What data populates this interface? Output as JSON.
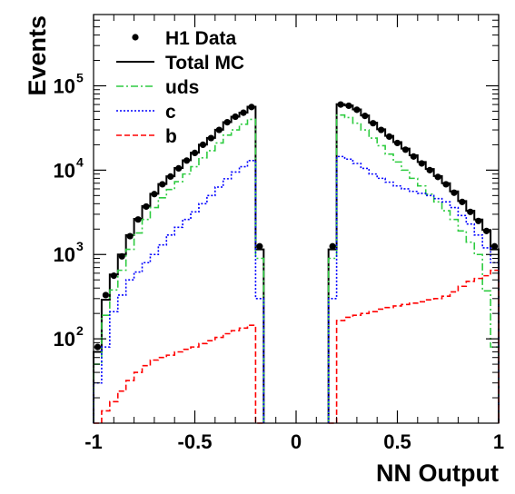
{
  "chart_data": {
    "type": "line",
    "title": "",
    "xlabel": "NN Output",
    "ylabel": "Events",
    "xlim": [
      -1,
      1
    ],
    "ylim": [
      10,
      700000
    ],
    "yscale": "log",
    "x_ticks": [
      -1,
      -0.5,
      0,
      0.5,
      1
    ],
    "x_tick_labels": [
      "-1",
      "-0.5",
      "0",
      "0.5",
      "1"
    ],
    "y_ticks": [
      100,
      1000,
      10000,
      100000
    ],
    "y_tick_labels": [
      {
        "base": "10",
        "exp": "2"
      },
      {
        "base": "10",
        "exp": "3"
      },
      {
        "base": "10",
        "exp": "4"
      },
      {
        "base": "10",
        "exp": "5"
      }
    ],
    "legend_position": "top-left",
    "bins": [
      {
        "x0": -1.0,
        "x1": -0.96
      },
      {
        "x0": -0.96,
        "x1": -0.92
      },
      {
        "x0": -0.92,
        "x1": -0.88
      },
      {
        "x0": -0.88,
        "x1": -0.84
      },
      {
        "x0": -0.84,
        "x1": -0.8
      },
      {
        "x0": -0.8,
        "x1": -0.76
      },
      {
        "x0": -0.76,
        "x1": -0.72
      },
      {
        "x0": -0.72,
        "x1": -0.68
      },
      {
        "x0": -0.68,
        "x1": -0.64
      },
      {
        "x0": -0.64,
        "x1": -0.6
      },
      {
        "x0": -0.6,
        "x1": -0.56
      },
      {
        "x0": -0.56,
        "x1": -0.52
      },
      {
        "x0": -0.52,
        "x1": -0.48
      },
      {
        "x0": -0.48,
        "x1": -0.44
      },
      {
        "x0": -0.44,
        "x1": -0.4
      },
      {
        "x0": -0.4,
        "x1": -0.36
      },
      {
        "x0": -0.36,
        "x1": -0.32
      },
      {
        "x0": -0.32,
        "x1": -0.28
      },
      {
        "x0": -0.28,
        "x1": -0.24
      },
      {
        "x0": -0.24,
        "x1": -0.2
      },
      {
        "x0": -0.2,
        "x1": -0.16
      },
      {
        "x0": 0.16,
        "x1": 0.2
      },
      {
        "x0": 0.2,
        "x1": 0.24
      },
      {
        "x0": 0.24,
        "x1": 0.28
      },
      {
        "x0": 0.28,
        "x1": 0.32
      },
      {
        "x0": 0.32,
        "x1": 0.36
      },
      {
        "x0": 0.36,
        "x1": 0.4
      },
      {
        "x0": 0.4,
        "x1": 0.44
      },
      {
        "x0": 0.44,
        "x1": 0.48
      },
      {
        "x0": 0.48,
        "x1": 0.52
      },
      {
        "x0": 0.52,
        "x1": 0.56
      },
      {
        "x0": 0.56,
        "x1": 0.6
      },
      {
        "x0": 0.6,
        "x1": 0.64
      },
      {
        "x0": 0.64,
        "x1": 0.68
      },
      {
        "x0": 0.68,
        "x1": 0.72
      },
      {
        "x0": 0.72,
        "x1": 0.76
      },
      {
        "x0": 0.76,
        "x1": 0.8
      },
      {
        "x0": 0.8,
        "x1": 0.84
      },
      {
        "x0": 0.84,
        "x1": 0.88
      },
      {
        "x0": 0.88,
        "x1": 0.92
      },
      {
        "x0": 0.92,
        "x1": 0.96
      },
      {
        "x0": 0.96,
        "x1": 1.0
      }
    ],
    "series": [
      {
        "name": "H1 Data",
        "style": "markers",
        "color": "#000000",
        "values": [
          80,
          330,
          560,
          950,
          1650,
          2600,
          3700,
          5200,
          6800,
          8400,
          10500,
          13000,
          16000,
          20000,
          24000,
          30000,
          37000,
          43000,
          48000,
          56000,
          1250,
          1250,
          60000,
          58000,
          52000,
          44000,
          36000,
          30000,
          25000,
          21000,
          17500,
          14500,
          12000,
          10000,
          8300,
          6800,
          5400,
          4200,
          3200,
          2500,
          1900,
          1250
        ]
      },
      {
        "name": "Total MC",
        "style": "solid",
        "color": "#000000",
        "values": [
          70,
          290,
          580,
          1000,
          1700,
          2650,
          3750,
          5250,
          6850,
          8450,
          10600,
          13100,
          16100,
          20100,
          24100,
          30100,
          37100,
          43100,
          48100,
          56500,
          1150,
          1150,
          60500,
          58500,
          52500,
          44500,
          36500,
          30500,
          25500,
          21500,
          18000,
          15000,
          12500,
          10300,
          8500,
          7000,
          5600,
          4300,
          3300,
          2600,
          1950,
          1150
        ]
      },
      {
        "name": "uds",
        "style": "dash-dot",
        "color": "#2ecc40",
        "values": [
          50,
          190,
          380,
          650,
          1150,
          1800,
          2600,
          3600,
          4700,
          5900,
          7300,
          9000,
          11000,
          14000,
          17000,
          21000,
          26000,
          30000,
          35000,
          40000,
          900,
          900,
          45000,
          42000,
          36000,
          30000,
          24000,
          19500,
          15500,
          12500,
          10000,
          8000,
          6500,
          5200,
          4200,
          3300,
          2600,
          1900,
          1400,
          1000,
          370,
          80
        ]
      },
      {
        "name": "c",
        "style": "dotted",
        "color": "#0000ff",
        "values": [
          30,
          80,
          210,
          330,
          500,
          620,
          800,
          1000,
          1300,
          1700,
          2100,
          2600,
          3200,
          4000,
          5000,
          6300,
          7900,
          9500,
          11000,
          13000,
          300,
          300,
          14500,
          13500,
          12000,
          10500,
          9000,
          8000,
          7200,
          6500,
          6000,
          5600,
          5300,
          5000,
          4600,
          4200,
          3600,
          2900,
          2300,
          1700,
          1200,
          800
        ]
      },
      {
        "name": "b",
        "style": "dashed",
        "color": "#ff0000",
        "values": [
          10,
          14,
          18,
          24,
          32,
          40,
          48,
          56,
          60,
          64,
          70,
          75,
          80,
          88,
          95,
          104,
          115,
          125,
          134,
          145,
          10,
          10,
          165,
          180,
          190,
          200,
          210,
          225,
          235,
          245,
          255,
          265,
          275,
          290,
          300,
          320,
          360,
          420,
          480,
          520,
          560,
          650
        ]
      }
    ]
  }
}
